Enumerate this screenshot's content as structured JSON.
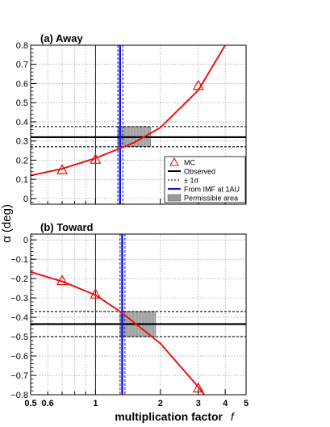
{
  "figure": {
    "ylabel": "α (deg)",
    "xlabel": "multiplication factor",
    "xlabel_var": "f",
    "x_ticks": [
      {
        "value": 0.5,
        "label": "0.5"
      },
      {
        "value": 0.6,
        "label": "0.6"
      },
      {
        "value": 1,
        "label": "1"
      },
      {
        "value": 2,
        "label": "2"
      },
      {
        "value": 3,
        "label": "3"
      },
      {
        "value": 4,
        "label": "4"
      },
      {
        "value": 5,
        "label": "5"
      }
    ],
    "x_gridlines": [
      0.6,
      0.7,
      0.8,
      0.9,
      1,
      2,
      3,
      4
    ]
  },
  "colors": {
    "mc": "#ee1111",
    "observed": "#000000",
    "imf": "#1515dd",
    "grid": "#888888",
    "area_fill": "#9a9a9a"
  },
  "legend": {
    "items": [
      {
        "key": "mc",
        "label": "MC"
      },
      {
        "key": "observed",
        "label": "Observed"
      },
      {
        "key": "sigma",
        "label": "± 1σ"
      },
      {
        "key": "imf",
        "label": "From IMF at 1AU"
      },
      {
        "key": "area",
        "label": "Permissible area"
      }
    ]
  },
  "chart_data": [
    {
      "type": "line",
      "title": "(a) Away",
      "xscale": "log",
      "xlim": [
        0.5,
        5
      ],
      "ylim": [
        -0.03,
        0.8
      ],
      "y_ticks": [
        0,
        0.1,
        0.2,
        0.3,
        0.4,
        0.5,
        0.6,
        0.7,
        0.8
      ],
      "y_tick_labels": [
        "0",
        "0.1",
        "0.2",
        "0.3",
        "0.4",
        "0.5",
        "0.6",
        "0.7",
        "0.8"
      ],
      "grid": true,
      "legend_position": "bottom-right",
      "mc_points": {
        "x": [
          0.7,
          1.0,
          3.0
        ],
        "y": [
          0.15,
          0.205,
          0.59
        ]
      },
      "fit_curve": {
        "x": [
          0.5,
          0.7,
          1.0,
          1.5,
          2.0,
          3.0,
          4.0
        ],
        "y": [
          0.12,
          0.155,
          0.21,
          0.29,
          0.37,
          0.565,
          0.8
        ]
      },
      "observed": {
        "value": 0.32,
        "sigma_low": 0.27,
        "sigma_high": 0.375
      },
      "imf": {
        "value": 1.3,
        "low": 1.27,
        "high": 1.34
      },
      "permissible_area": {
        "x": [
          1.27,
          1.8
        ],
        "y": [
          0.27,
          0.375
        ]
      }
    },
    {
      "type": "line",
      "title": "(b) Toward",
      "xscale": "log",
      "xlim": [
        0.5,
        5
      ],
      "ylim": [
        -0.8,
        0.03
      ],
      "y_ticks": [
        0,
        -0.1,
        -0.2,
        -0.3,
        -0.4,
        -0.5,
        -0.6,
        -0.7,
        -0.8
      ],
      "y_tick_labels": [
        "0",
        "−0.1",
        "−0.2",
        "−0.3",
        "−0.4",
        "−0.5",
        "−0.6",
        "−0.7",
        "−0.8"
      ],
      "grid": true,
      "mc_points": {
        "x": [
          0.7,
          1.0,
          3.0
        ],
        "y": [
          -0.21,
          -0.28,
          -0.765
        ]
      },
      "fit_curve": {
        "x": [
          0.5,
          0.7,
          1.0,
          1.3,
          2.0,
          3.0,
          3.3
        ],
        "y": [
          -0.165,
          -0.215,
          -0.285,
          -0.37,
          -0.535,
          -0.76,
          -0.82
        ]
      },
      "observed": {
        "value": -0.435,
        "sigma_low": -0.5,
        "sigma_high": -0.37
      },
      "imf": {
        "value": 1.33,
        "low": 1.3,
        "high": 1.37
      },
      "permissible_area": {
        "x": [
          1.3,
          1.9
        ],
        "y": [
          -0.5,
          -0.37
        ]
      }
    }
  ]
}
